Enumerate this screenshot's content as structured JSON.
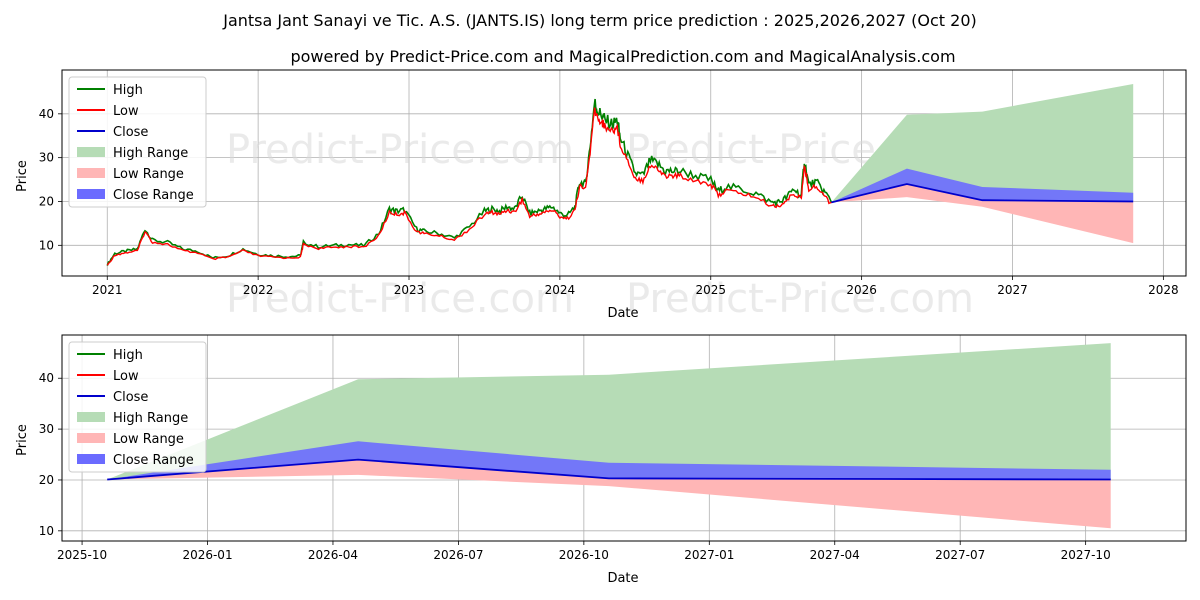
{
  "title": "Jantsa Jant Sanayi ve Tic. A.S. (JANTS.IS) long term price prediction : 2025,2026,2027 (Oct 20)",
  "subtitle": "powered by Predict-Price.com and MagicalPrediction.com and MagicalAnalysis.com",
  "watermark": "Predict-Price.com",
  "colors": {
    "high": "#008000",
    "low": "#ff0000",
    "close": "#0000cc",
    "high_range": "#b6dcb6",
    "low_range": "#ffb6b6",
    "close_range": "#6b6bff"
  },
  "legend": [
    "High",
    "Low",
    "Close",
    "High Range",
    "Low Range",
    "Close Range"
  ],
  "chart_data": [
    {
      "type": "line",
      "name": "full history and forecast",
      "xlabel": "Date",
      "ylabel": "Price",
      "xlim": [
        2020.7,
        2028.15
      ],
      "ylim": [
        3,
        50
      ],
      "x_ticks": [
        "2021",
        "2022",
        "2023",
        "2024",
        "2025",
        "2026",
        "2027",
        "2028"
      ],
      "x_tick_values": [
        2021,
        2022,
        2023,
        2024,
        2025,
        2026,
        2027,
        2028
      ],
      "y_ticks": [
        "10",
        "20",
        "30",
        "40"
      ],
      "y_tick_values": [
        10,
        20,
        30,
        40
      ],
      "history_x": [
        2021.0,
        2021.05,
        2021.12,
        2021.2,
        2021.25,
        2021.3,
        2021.4,
        2021.5,
        2021.6,
        2021.7,
        2021.8,
        2021.9,
        2022.0,
        2022.1,
        2022.2,
        2022.28,
        2022.3,
        2022.4,
        2022.5,
        2022.6,
        2022.7,
        2022.8,
        2022.87,
        2022.92,
        2022.97,
        2023.05,
        2023.1,
        2023.2,
        2023.3,
        2023.4,
        2023.5,
        2023.55,
        2023.6,
        2023.65,
        2023.7,
        2023.75,
        2023.8,
        2023.85,
        2023.9,
        2023.95,
        2024.0,
        2024.05,
        2024.1,
        2024.13,
        2024.17,
        2024.2,
        2024.23,
        2024.25,
        2024.28,
        2024.3,
        2024.35,
        2024.38,
        2024.4,
        2024.45,
        2024.5,
        2024.55,
        2024.6,
        2024.65,
        2024.7,
        2024.75,
        2024.8,
        2024.9,
        2025.0,
        2025.05,
        2025.1,
        2025.2,
        2025.3,
        2025.4,
        2025.45,
        2025.5,
        2025.55,
        2025.6,
        2025.62,
        2025.65,
        2025.7,
        2025.75,
        2025.8
      ],
      "history_close": [
        5.5,
        8.0,
        8.5,
        9.0,
        13.5,
        11.0,
        10.5,
        9.0,
        8.5,
        7.0,
        7.5,
        9.0,
        7.8,
        7.5,
        7.3,
        7.5,
        10.5,
        9.5,
        9.8,
        10.0,
        9.8,
        12.5,
        18.0,
        17.5,
        17.8,
        13.5,
        13.0,
        12.5,
        11.5,
        14.0,
        17.5,
        18.0,
        17.5,
        18.5,
        18.0,
        21.0,
        17.0,
        17.5,
        18.0,
        18.5,
        17.0,
        16.5,
        18.5,
        24.0,
        23.5,
        32.0,
        42.0,
        40.0,
        39.0,
        38.0,
        37.0,
        38.0,
        34.0,
        30.0,
        26.0,
        25.5,
        29.0,
        28.0,
        26.5,
        26.5,
        26.5,
        25.5,
        24.5,
        22.0,
        23.0,
        22.5,
        21.5,
        19.5,
        19.5,
        20.5,
        22.5,
        21.0,
        29.0,
        23.5,
        24.0,
        22.0,
        19.8
      ],
      "forecast_x": [
        2025.8,
        2026.3,
        2026.8,
        2027.8
      ],
      "forecast_close": [
        19.8,
        24.0,
        20.3,
        20.0
      ],
      "close_range_upper": [
        19.8,
        27.5,
        23.3,
        22.0
      ],
      "close_range_lower": [
        19.8,
        24.0,
        20.3,
        20.0
      ],
      "high_range_upper": [
        19.8,
        39.8,
        40.5,
        46.8
      ],
      "low_range_lower": [
        19.8,
        21.0,
        18.8,
        10.5
      ]
    },
    {
      "type": "line",
      "name": "forecast zoom",
      "xlabel": "Date",
      "ylabel": "Price",
      "xlim": [
        2025.71,
        2027.95
      ],
      "ylim": [
        8,
        48.5
      ],
      "x_ticks": [
        "2025-10",
        "2026-01",
        "2026-04",
        "2026-07",
        "2026-10",
        "2027-01",
        "2027-04",
        "2027-07",
        "2027-10"
      ],
      "x_tick_values": [
        2025.75,
        2026.0,
        2026.25,
        2026.5,
        2026.75,
        2027.0,
        2027.25,
        2027.5,
        2027.75
      ],
      "y_ticks": [
        "10",
        "20",
        "30",
        "40"
      ],
      "y_tick_values": [
        10,
        20,
        30,
        40
      ],
      "forecast_x": [
        2025.8,
        2026.3,
        2026.8,
        2027.8
      ],
      "forecast_close": [
        20.1,
        24.0,
        20.3,
        20.1
      ],
      "close_range_upper": [
        20.1,
        27.6,
        23.4,
        22.0
      ],
      "close_range_lower": [
        20.1,
        24.0,
        20.3,
        20.1
      ],
      "high_range_upper": [
        20.1,
        39.8,
        40.7,
        46.9
      ],
      "low_range_lower": [
        20.1,
        21.0,
        18.8,
        10.5
      ]
    }
  ]
}
